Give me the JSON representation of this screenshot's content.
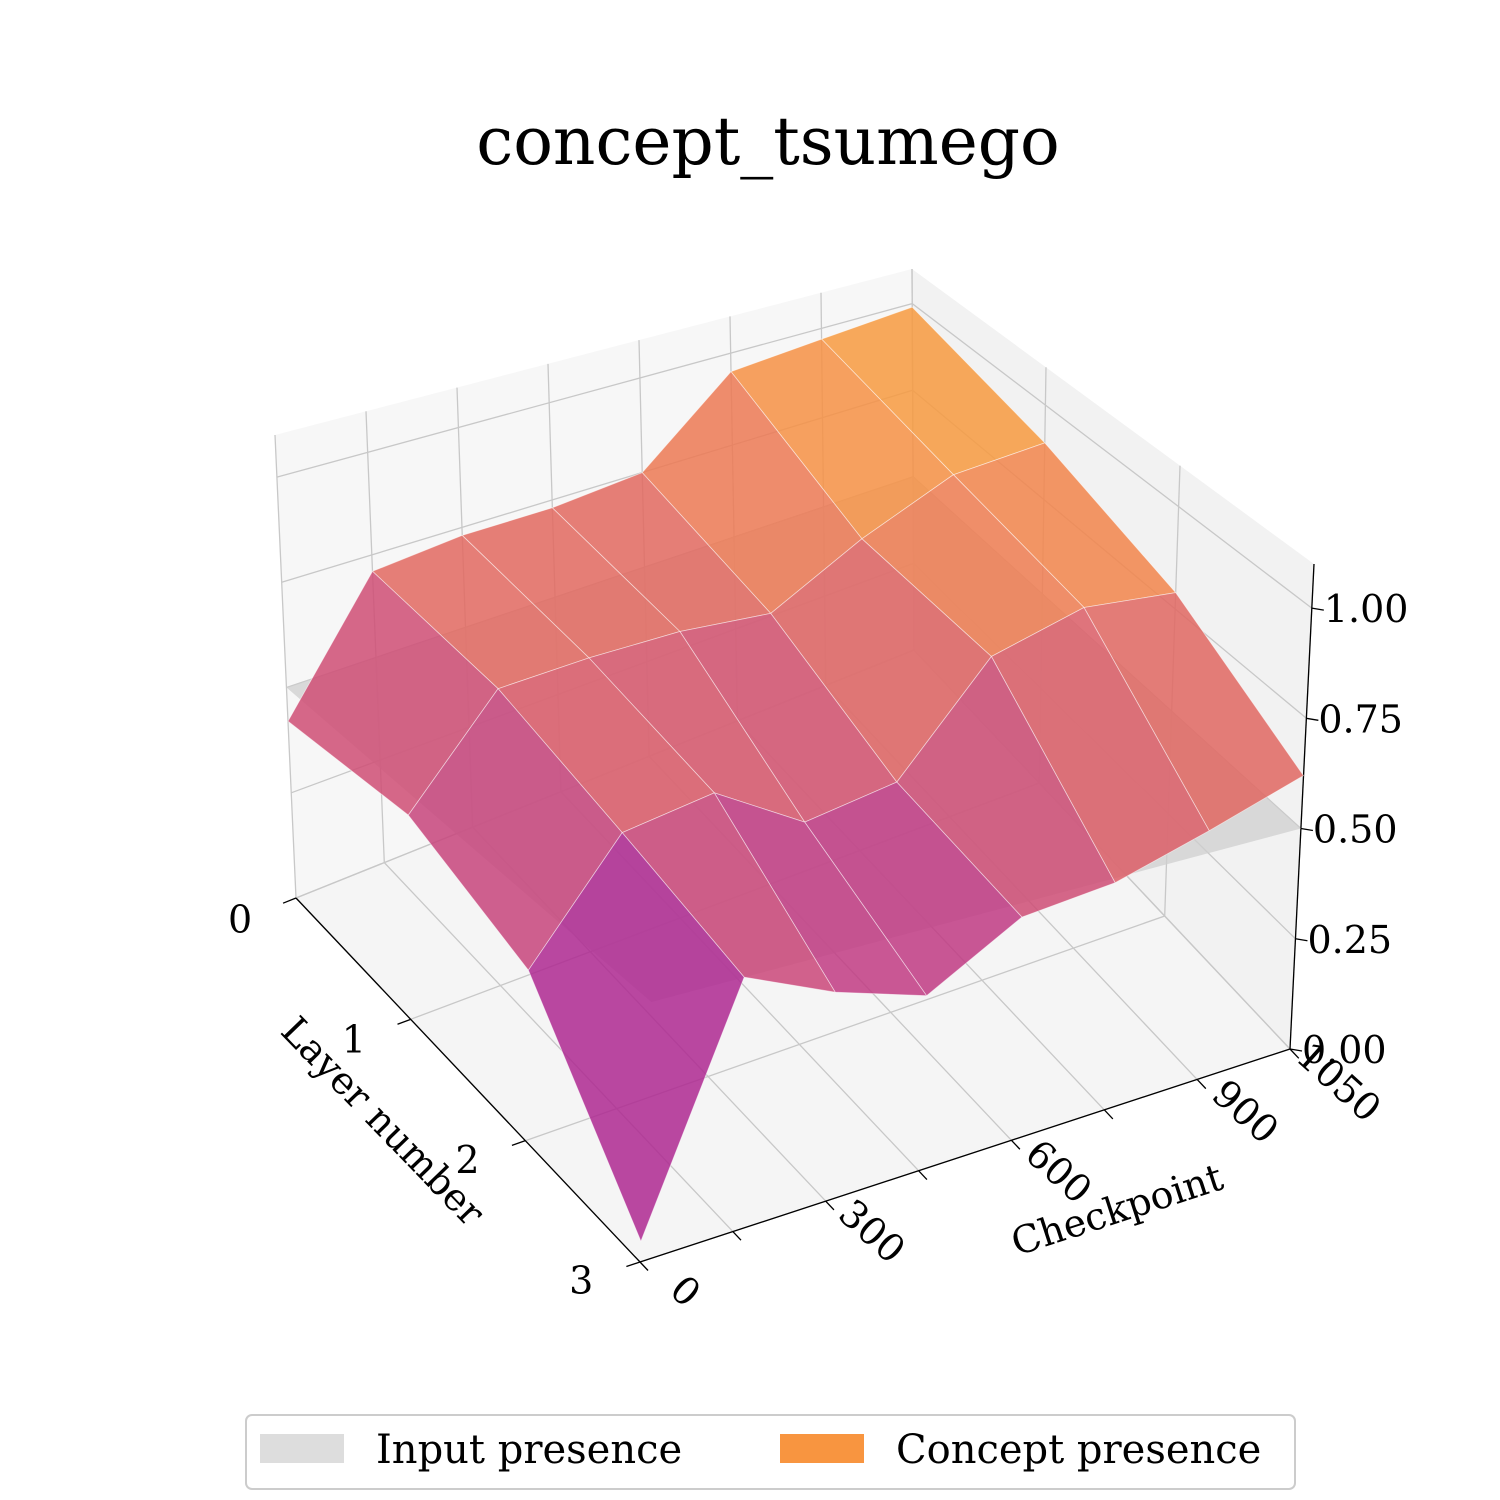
{
  "chart_data": {
    "type": "surface",
    "title": "concept_tsumego",
    "xlabel": "Checkpoint",
    "ylabel": "Layer number",
    "zlabel": "",
    "x_ticks": [
      "0",
      "300",
      "600",
      "900",
      "1050"
    ],
    "y_ticks": [
      "0",
      "1",
      "2",
      "3"
    ],
    "z_ticks": [
      "0.00",
      "0.25",
      "0.50",
      "0.75",
      "1.00"
    ],
    "zlim": [
      0,
      1
    ],
    "checkpoints": [
      0,
      150,
      300,
      450,
      600,
      750,
      900,
      1050
    ],
    "layers": [
      0,
      1,
      2,
      3
    ],
    "concept_presence": [
      [
        0.42,
        0.71,
        0.73,
        0.73,
        0.75,
        0.95,
        0.97,
        0.99
      ],
      [
        0.45,
        0.67,
        0.68,
        0.68,
        0.66,
        0.78,
        0.88,
        0.9
      ],
      [
        0.35,
        0.58,
        0.61,
        0.49,
        0.52,
        0.75,
        0.81,
        0.79
      ],
      [
        0.04,
        0.5,
        0.42,
        0.36,
        0.47,
        0.49,
        0.55,
        0.62
      ]
    ],
    "input_presence": 0.5,
    "legend": [
      {
        "name": "Input presence",
        "color": "#dddddd"
      },
      {
        "name": "Concept presence",
        "color": "#f89540"
      }
    ],
    "legend_position": "bottom",
    "colormap": "plasma",
    "grid": true
  }
}
